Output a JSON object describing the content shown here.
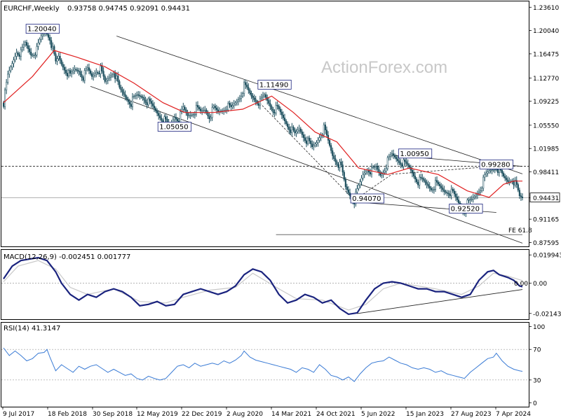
{
  "chart_data": {
    "type": "candlestick",
    "symbol": "EURCHF,Weekly",
    "ohlc_label": "0.93758 0.94745 0.92091 0.94431",
    "watermark": "ActionForex.com",
    "x_ticks": [
      "9 Jul 2017",
      "18 Feb 2018",
      "30 Sep 2018",
      "12 May 2019",
      "22 Dec 2019",
      "2 Aug 2020",
      "14 Mar 2021",
      "24 Oct 2021",
      "5 Jun 2022",
      "15 Jan 2023",
      "27 Aug 2023",
      "7 Apr 2024"
    ],
    "price_axis": {
      "ticks": [
        1.2361,
        1.2004,
        1.16475,
        1.1277,
        1.09225,
        1.0555,
        1.01985,
        0.98411,
        0.94431,
        0.91165,
        0.87595
      ],
      "tick_labels": [
        "1.23610",
        "1.20040",
        "1.16475",
        "1.12770",
        "1.09225",
        "1.05550",
        "1.01985",
        "0.98411",
        "0.94431",
        "0.91165",
        "0.87595"
      ],
      "range": [
        0.87,
        1.245
      ],
      "current_price": "0.94431",
      "level_price": "0.99280"
    },
    "annotations": [
      {
        "text": "1.20040",
        "date": "2018-01-14",
        "price": 1.2004
      },
      {
        "text": "1.05050",
        "date": "2019-10-13",
        "price": 1.0505
      },
      {
        "text": "1.11490",
        "date": "2021-02-07",
        "price": 1.1149
      },
      {
        "text": "1.00950",
        "date": "2022-12-18",
        "price": 1.0095
      },
      {
        "text": "0.94070",
        "date": "2022-05-01",
        "price": 0.9407
      },
      {
        "text": "0.99280",
        "date": "2024-01-14",
        "price": 0.9928
      },
      {
        "text": "0.92520",
        "date": "2023-08-20",
        "price": 0.9252
      },
      {
        "text": "FE 61.8",
        "date": "2024-05-19",
        "price": 0.888
      }
    ],
    "price_path": [
      [
        0,
        1.09
      ],
      [
        3,
        1.13
      ],
      [
        6,
        1.15
      ],
      [
        9,
        1.17
      ],
      [
        12,
        1.165
      ],
      [
        15,
        1.18
      ],
      [
        19,
        1.165
      ],
      [
        23,
        1.17
      ],
      [
        26,
        1.19
      ],
      [
        29,
        1.2004
      ],
      [
        32,
        1.19
      ],
      [
        34,
        1.17
      ],
      [
        36,
        1.15
      ],
      [
        38,
        1.16
      ],
      [
        40,
        1.15
      ],
      [
        43,
        1.14
      ],
      [
        46,
        1.13
      ],
      [
        49,
        1.14
      ],
      [
        52,
        1.14
      ],
      [
        55,
        1.13
      ],
      [
        58,
        1.14
      ],
      [
        61,
        1.13
      ],
      [
        64,
        1.14
      ],
      [
        67,
        1.14
      ],
      [
        70,
        1.12
      ],
      [
        73,
        1.13
      ],
      [
        76,
        1.14
      ],
      [
        80,
        1.11
      ],
      [
        84,
        1.1
      ],
      [
        88,
        1.09
      ],
      [
        92,
        1.1
      ],
      [
        96,
        1.1
      ],
      [
        100,
        1.09
      ],
      [
        104,
        1.08
      ],
      [
        108,
        1.07
      ],
      [
        112,
        1.06
      ],
      [
        114,
        1.0505
      ],
      [
        116,
        1.06
      ],
      [
        118,
        1.07
      ],
      [
        121,
        1.065
      ],
      [
        124,
        1.08
      ],
      [
        127,
        1.07
      ],
      [
        130,
        1.075
      ],
      [
        133,
        1.08
      ],
      [
        136,
        1.075
      ],
      [
        139,
        1.08
      ],
      [
        142,
        1.07
      ],
      [
        145,
        1.08
      ],
      [
        148,
        1.075
      ],
      [
        151,
        1.08
      ],
      [
        154,
        1.085
      ],
      [
        157,
        1.08
      ],
      [
        160,
        1.09
      ],
      [
        163,
        1.1
      ],
      [
        166,
        1.1149
      ],
      [
        168,
        1.11
      ],
      [
        171,
        1.1
      ],
      [
        174,
        1.095
      ],
      [
        177,
        1.09
      ],
      [
        180,
        1.1
      ],
      [
        183,
        1.09
      ],
      [
        186,
        1.08
      ],
      [
        189,
        1.08
      ],
      [
        192,
        1.07
      ],
      [
        195,
        1.06
      ],
      [
        198,
        1.05
      ],
      [
        201,
        1.04
      ],
      [
        204,
        1.05
      ],
      [
        207,
        1.04
      ],
      [
        210,
        1.03
      ],
      [
        213,
        1.02
      ],
      [
        216,
        1.03
      ],
      [
        218,
        1.04
      ],
      [
        221,
        1.05
      ],
      [
        224,
        1.03
      ],
      [
        227,
        1.01
      ],
      [
        230,
        1.0
      ],
      [
        233,
        0.99
      ],
      [
        236,
        0.96
      ],
      [
        239,
        0.95
      ],
      [
        242,
        0.9407
      ],
      [
        245,
        0.96
      ],
      [
        248,
        0.98
      ],
      [
        251,
        0.99
      ],
      [
        254,
        0.985
      ],
      [
        257,
        0.99
      ],
      [
        260,
        0.98
      ],
      [
        263,
        0.99
      ],
      [
        265,
        1.0
      ],
      [
        268,
        1.0095
      ],
      [
        271,
        1.005
      ],
      [
        274,
        1.0
      ],
      [
        277,
        0.995
      ],
      [
        280,
        0.99
      ],
      [
        283,
        0.98
      ],
      [
        286,
        0.97
      ],
      [
        289,
        0.97
      ],
      [
        292,
        0.965
      ],
      [
        295,
        0.96
      ],
      [
        298,
        0.965
      ],
      [
        301,
        0.96
      ],
      [
        304,
        0.955
      ],
      [
        307,
        0.955
      ],
      [
        310,
        0.95
      ],
      [
        313,
        0.94
      ],
      [
        316,
        0.93
      ],
      [
        318,
        0.9252
      ],
      [
        320,
        0.935
      ],
      [
        323,
        0.94
      ],
      [
        326,
        0.95
      ],
      [
        329,
        0.96
      ],
      [
        332,
        0.975
      ],
      [
        335,
        0.985
      ],
      [
        338,
        0.99
      ],
      [
        340,
        0.9928
      ],
      [
        342,
        0.985
      ],
      [
        345,
        0.975
      ],
      [
        348,
        0.97
      ],
      [
        351,
        0.975
      ],
      [
        354,
        0.96
      ],
      [
        356,
        0.945
      ],
      [
        358,
        0.9443
      ]
    ],
    "sma_path": [
      [
        0,
        1.09
      ],
      [
        20,
        1.13
      ],
      [
        35,
        1.17
      ],
      [
        50,
        1.16
      ],
      [
        70,
        1.145
      ],
      [
        90,
        1.12
      ],
      [
        110,
        1.09
      ],
      [
        125,
        1.075
      ],
      [
        145,
        1.075
      ],
      [
        165,
        1.08
      ],
      [
        185,
        1.1
      ],
      [
        200,
        1.075
      ],
      [
        215,
        1.045
      ],
      [
        230,
        1.03
      ],
      [
        245,
        0.99
      ],
      [
        265,
        0.98
      ],
      [
        280,
        0.99
      ],
      [
        300,
        0.98
      ],
      [
        320,
        0.955
      ],
      [
        335,
        0.945
      ],
      [
        345,
        0.965
      ],
      [
        352,
        0.97
      ],
      [
        358,
        0.97
      ]
    ],
    "trendlines": [
      [
        [
          78,
          1.192
        ],
        [
          358,
          0.981
        ]
      ],
      [
        [
          60,
          1.115
        ],
        [
          358,
          0.875
        ]
      ],
      [
        [
          268,
          1.0095
        ],
        [
          358,
          0.9925
        ]
      ],
      [
        [
          242,
          0.938
        ],
        [
          340,
          0.922
        ]
      ],
      [
        [
          242,
          0.9407
        ],
        [
          268,
          0.9805
        ]
      ],
      [
        [
          268,
          0.9805
        ],
        [
          340,
          0.9928
        ]
      ],
      [
        [
          170,
          1.105
        ],
        [
          242,
          0.9407
        ]
      ]
    ],
    "fe_line": {
      "price": 0.888,
      "from": 188,
      "to": 358
    },
    "macd": {
      "label": "MACD(12,26,9) -0.002451 0.001777",
      "ticks": [
        0.019943,
        0.0,
        -0.021434
      ],
      "tick_labels": [
        "0.019943",
        "0.00",
        "-0.021434"
      ],
      "zero_label": "0.00",
      "range": [
        -0.0255,
        0.0235
      ],
      "values": [
        [
          0,
          0.003
        ],
        [
          6,
          0.012
        ],
        [
          12,
          0.016
        ],
        [
          18,
          0.017
        ],
        [
          24,
          0.018
        ],
        [
          30,
          0.016
        ],
        [
          36,
          0.008
        ],
        [
          40,
          0.0
        ],
        [
          46,
          -0.008
        ],
        [
          52,
          -0.012
        ],
        [
          58,
          -0.008
        ],
        [
          64,
          -0.01
        ],
        [
          70,
          -0.006
        ],
        [
          76,
          -0.004
        ],
        [
          82,
          -0.006
        ],
        [
          88,
          -0.01
        ],
        [
          94,
          -0.016
        ],
        [
          100,
          -0.015
        ],
        [
          106,
          -0.013
        ],
        [
          112,
          -0.016
        ],
        [
          118,
          -0.015
        ],
        [
          124,
          -0.008
        ],
        [
          130,
          -0.006
        ],
        [
          136,
          -0.004
        ],
        [
          142,
          -0.006
        ],
        [
          148,
          -0.008
        ],
        [
          154,
          -0.006
        ],
        [
          160,
          -0.002
        ],
        [
          166,
          0.006
        ],
        [
          172,
          0.01
        ],
        [
          178,
          0.008
        ],
        [
          184,
          0.002
        ],
        [
          190,
          -0.008
        ],
        [
          196,
          -0.014
        ],
        [
          202,
          -0.012
        ],
        [
          208,
          -0.008
        ],
        [
          214,
          -0.01
        ],
        [
          220,
          -0.014
        ],
        [
          226,
          -0.012
        ],
        [
          232,
          -0.018
        ],
        [
          238,
          -0.022
        ],
        [
          244,
          -0.021
        ],
        [
          250,
          -0.012
        ],
        [
          256,
          -0.004
        ],
        [
          262,
          0.0
        ],
        [
          268,
          0.001
        ],
        [
          274,
          0.0
        ],
        [
          280,
          -0.002
        ],
        [
          286,
          -0.004
        ],
        [
          292,
          -0.004
        ],
        [
          298,
          -0.006
        ],
        [
          304,
          -0.006
        ],
        [
          310,
          -0.008
        ],
        [
          316,
          -0.01
        ],
        [
          322,
          -0.008
        ],
        [
          328,
          0.002
        ],
        [
          334,
          0.008
        ],
        [
          338,
          0.009
        ],
        [
          342,
          0.006
        ],
        [
          348,
          0.004
        ],
        [
          352,
          0.002
        ],
        [
          356,
          -0.002
        ],
        [
          358,
          -0.0025
        ]
      ],
      "signal": [
        [
          0,
          0.001
        ],
        [
          10,
          0.012
        ],
        [
          24,
          0.016
        ],
        [
          36,
          0.01
        ],
        [
          46,
          -0.003
        ],
        [
          58,
          -0.008
        ],
        [
          76,
          -0.004
        ],
        [
          94,
          -0.013
        ],
        [
          112,
          -0.014
        ],
        [
          124,
          -0.01
        ],
        [
          142,
          -0.005
        ],
        [
          160,
          -0.003
        ],
        [
          172,
          0.007
        ],
        [
          190,
          -0.004
        ],
        [
          202,
          -0.011
        ],
        [
          220,
          -0.012
        ],
        [
          238,
          -0.019
        ],
        [
          250,
          -0.015
        ],
        [
          262,
          -0.004
        ],
        [
          274,
          0.0
        ],
        [
          298,
          -0.004
        ],
        [
          316,
          -0.008
        ],
        [
          328,
          -0.002
        ],
        [
          338,
          0.007
        ],
        [
          348,
          0.005
        ],
        [
          358,
          0.0018
        ]
      ],
      "trendline": [
        [
          244,
          -0.0215
        ],
        [
          358,
          -0.0045
        ]
      ]
    },
    "rsi": {
      "label": "RSI(14) 41.3147",
      "ticks": [
        100,
        70,
        30,
        0
      ],
      "tick_labels": [
        "100",
        "70",
        "30",
        "0"
      ],
      "range": [
        -5,
        105
      ],
      "values": [
        [
          0,
          72
        ],
        [
          4,
          62
        ],
        [
          8,
          68
        ],
        [
          12,
          62
        ],
        [
          16,
          55
        ],
        [
          20,
          58
        ],
        [
          24,
          65
        ],
        [
          28,
          66
        ],
        [
          30,
          70
        ],
        [
          32,
          60
        ],
        [
          36,
          42
        ],
        [
          40,
          50
        ],
        [
          44,
          45
        ],
        [
          48,
          40
        ],
        [
          52,
          48
        ],
        [
          56,
          44
        ],
        [
          60,
          48
        ],
        [
          64,
          50
        ],
        [
          68,
          45
        ],
        [
          72,
          40
        ],
        [
          76,
          44
        ],
        [
          80,
          40
        ],
        [
          84,
          36
        ],
        [
          88,
          38
        ],
        [
          92,
          32
        ],
        [
          96,
          30
        ],
        [
          100,
          35
        ],
        [
          104,
          32
        ],
        [
          108,
          30
        ],
        [
          112,
          32
        ],
        [
          116,
          40
        ],
        [
          120,
          48
        ],
        [
          124,
          50
        ],
        [
          128,
          46
        ],
        [
          132,
          52
        ],
        [
          136,
          48
        ],
        [
          140,
          50
        ],
        [
          144,
          52
        ],
        [
          148,
          50
        ],
        [
          152,
          55
        ],
        [
          156,
          52
        ],
        [
          160,
          56
        ],
        [
          164,
          62
        ],
        [
          166,
          68
        ],
        [
          170,
          60
        ],
        [
          174,
          56
        ],
        [
          178,
          54
        ],
        [
          182,
          52
        ],
        [
          186,
          50
        ],
        [
          190,
          48
        ],
        [
          194,
          46
        ],
        [
          198,
          44
        ],
        [
          202,
          40
        ],
        [
          206,
          46
        ],
        [
          210,
          44
        ],
        [
          214,
          40
        ],
        [
          218,
          50
        ],
        [
          222,
          44
        ],
        [
          226,
          36
        ],
        [
          230,
          34
        ],
        [
          234,
          30
        ],
        [
          238,
          34
        ],
        [
          242,
          28
        ],
        [
          246,
          38
        ],
        [
          250,
          46
        ],
        [
          254,
          52
        ],
        [
          258,
          54
        ],
        [
          262,
          55
        ],
        [
          266,
          60
        ],
        [
          270,
          56
        ],
        [
          274,
          52
        ],
        [
          278,
          50
        ],
        [
          282,
          46
        ],
        [
          286,
          44
        ],
        [
          290,
          46
        ],
        [
          294,
          44
        ],
        [
          298,
          40
        ],
        [
          302,
          42
        ],
        [
          306,
          38
        ],
        [
          310,
          36
        ],
        [
          314,
          34
        ],
        [
          318,
          32
        ],
        [
          322,
          40
        ],
        [
          326,
          46
        ],
        [
          330,
          52
        ],
        [
          334,
          58
        ],
        [
          338,
          60
        ],
        [
          340,
          65
        ],
        [
          344,
          55
        ],
        [
          348,
          48
        ],
        [
          352,
          44
        ],
        [
          356,
          42
        ],
        [
          358,
          41.3
        ]
      ]
    }
  }
}
